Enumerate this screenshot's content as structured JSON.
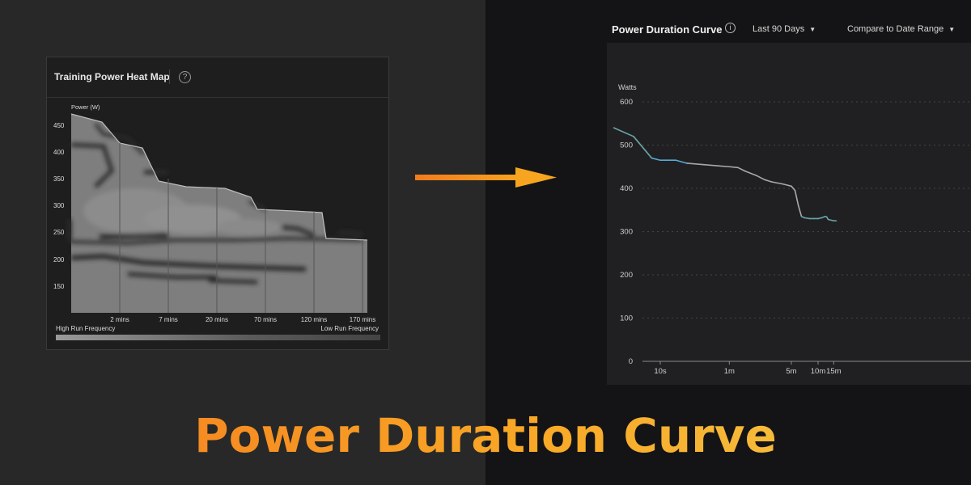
{
  "heatmap": {
    "title": "Training Power Heat Map",
    "help_icon": "question-circle-icon",
    "y_label": "Power (W)",
    "y_ticks": [
      "450",
      "400",
      "350",
      "300",
      "250",
      "200",
      "150"
    ],
    "x_ticks": [
      "2 mins",
      "7 mins",
      "20 mins",
      "70 mins",
      "120 mins",
      "170 mins"
    ],
    "legend_left": "High Run Frequency",
    "legend_right": "Low Run Frequency"
  },
  "arrow": {
    "color": "#f79a1e",
    "icon": "arrow-right-icon"
  },
  "pdc": {
    "title": "Power Duration Curve",
    "info_icon": "info-icon",
    "range_dropdown": "Last 90 Days",
    "compare_dropdown": "Compare to Date Range",
    "chevron_icon": "chevron-down-icon"
  },
  "chart_data": {
    "type": "line",
    "title": "Power Duration Curve",
    "ylabel": "Watts",
    "ylim": [
      0,
      600
    ],
    "y_ticks": [
      "600",
      "500",
      "400",
      "300",
      "200",
      "100",
      "0"
    ],
    "x_ticks": [
      "10s",
      "1m",
      "5m",
      "10m",
      "15m"
    ],
    "x": [
      "3s",
      "5s",
      "8s",
      "10s",
      "15s",
      "20s",
      "30s",
      "45s",
      "1m",
      "1m15s",
      "1m30s",
      "2m",
      "2m30s",
      "3m",
      "4m",
      "5m",
      "5m30s",
      "6m",
      "6m30s",
      "7m",
      "8m",
      "9m",
      "10m",
      "11m",
      "12m",
      "12m30s",
      "13m",
      "15m",
      "16m"
    ],
    "series": [
      {
        "values": [
          540,
          520,
          470,
          465,
          465,
          458,
          455,
          452,
          450,
          448,
          440,
          430,
          420,
          415,
          410,
          405,
          395,
          360,
          335,
          332,
          330,
          330,
          330,
          332,
          335,
          334,
          328,
          325,
          325
        ]
      }
    ],
    "grid": true,
    "colors": {
      "line_blue": "#5aa8d8",
      "line_gray": "#a8a8a8",
      "line_teal": "#6aa6a6"
    }
  },
  "banner": {
    "text": "Power Duration Curve"
  }
}
